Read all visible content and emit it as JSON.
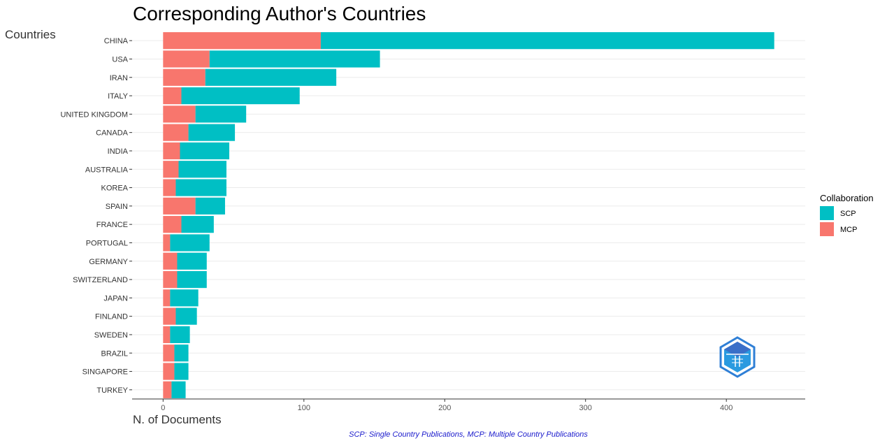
{
  "chart_data": {
    "type": "bar",
    "orientation": "horizontal",
    "stacked": true,
    "title": "Corresponding Author's Countries",
    "ylabel": "Countries",
    "xlabel": "N. of Documents",
    "categories": [
      "CHINA",
      "USA",
      "IRAN",
      "ITALY",
      "UNITED KINGDOM",
      "CANADA",
      "INDIA",
      "AUSTRALIA",
      "KOREA",
      "SPAIN",
      "FRANCE",
      "PORTUGAL",
      "GERMANY",
      "SWITZERLAND",
      "JAPAN",
      "FINLAND",
      "SWEDEN",
      "BRAZIL",
      "SINGAPORE",
      "TURKEY"
    ],
    "series": [
      {
        "name": "MCP",
        "color": "#F8766D",
        "values": [
          112,
          33,
          30,
          13,
          23,
          18,
          12,
          11,
          9,
          23,
          13,
          5,
          10,
          10,
          5,
          9,
          5,
          8,
          8,
          6
        ]
      },
      {
        "name": "SCP",
        "color": "#00BFC4",
        "values": [
          322,
          121,
          93,
          84,
          36,
          33,
          35,
          34,
          36,
          21,
          23,
          28,
          21,
          21,
          20,
          15,
          14,
          10,
          10,
          10
        ]
      }
    ],
    "xlim": [
      -22,
      456
    ],
    "xticks": [
      0,
      100,
      200,
      300,
      400
    ],
    "grid": true,
    "legend": {
      "title": "Collaboration",
      "position": "right",
      "entries": [
        {
          "label": "SCP",
          "color": "#00BFC4"
        },
        {
          "label": "MCP",
          "color": "#F8766D"
        }
      ]
    },
    "caption": "SCP: Single Country Publications, MCP: Multiple Country Publications",
    "logo_icon": "bibliometrix-hexagon-logo"
  }
}
